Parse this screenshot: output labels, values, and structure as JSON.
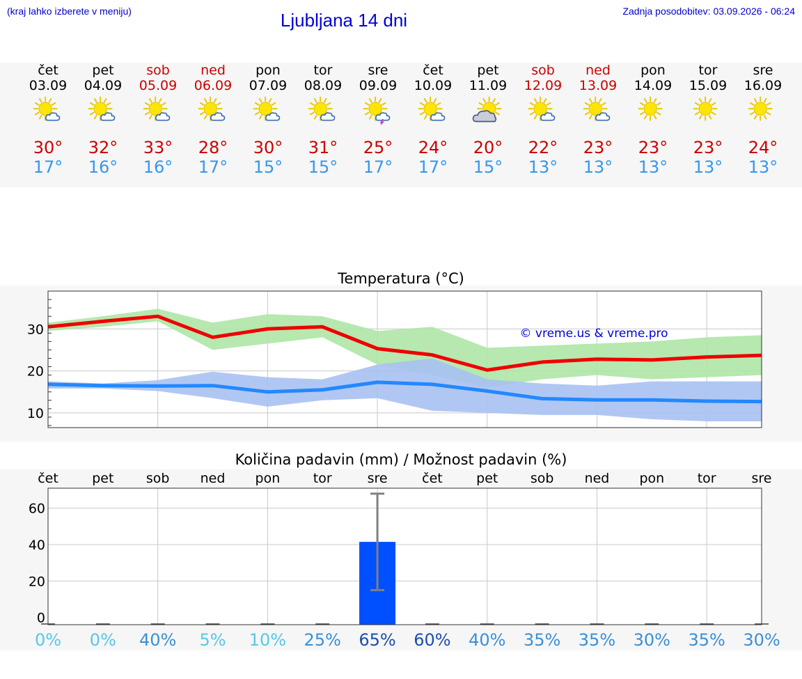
{
  "header": {
    "hint": "(kraj lahko izberete v meniju)",
    "title": "Ljubljana 14 dni",
    "updated": "Zadnja posodobitev: 03.09.2026 - 06:24"
  },
  "days": [
    {
      "name": "čet",
      "date": "03.09",
      "weekend": false,
      "icon": "sun-cloud-icon",
      "max": "30°",
      "min": "17°"
    },
    {
      "name": "pet",
      "date": "04.09",
      "weekend": false,
      "icon": "sun-cloud-icon",
      "max": "32°",
      "min": "16°"
    },
    {
      "name": "sob",
      "date": "05.09",
      "weekend": true,
      "icon": "sun-cloud-icon",
      "max": "33°",
      "min": "16°"
    },
    {
      "name": "ned",
      "date": "06.09",
      "weekend": true,
      "icon": "sun-cloud-icon",
      "max": "28°",
      "min": "17°"
    },
    {
      "name": "pon",
      "date": "07.09",
      "weekend": false,
      "icon": "sun-cloud-icon",
      "max": "30°",
      "min": "15°"
    },
    {
      "name": "tor",
      "date": "08.09",
      "weekend": false,
      "icon": "sun-cloud-icon",
      "max": "31°",
      "min": "15°"
    },
    {
      "name": "sre",
      "date": "09.09",
      "weekend": false,
      "icon": "sun-cloud-thunder-icon",
      "max": "25°",
      "min": "17°"
    },
    {
      "name": "čet",
      "date": "10.09",
      "weekend": false,
      "icon": "sun-cloud-icon",
      "max": "24°",
      "min": "17°"
    },
    {
      "name": "pet",
      "date": "11.09",
      "weekend": false,
      "icon": "cloud-sun-icon",
      "max": "20°",
      "min": "15°"
    },
    {
      "name": "sob",
      "date": "12.09",
      "weekend": true,
      "icon": "sun-cloud-icon",
      "max": "22°",
      "min": "13°"
    },
    {
      "name": "ned",
      "date": "13.09",
      "weekend": true,
      "icon": "sun-cloud-icon",
      "max": "23°",
      "min": "13°"
    },
    {
      "name": "pon",
      "date": "14.09",
      "weekend": false,
      "icon": "sun-icon",
      "max": "23°",
      "min": "13°"
    },
    {
      "name": "tor",
      "date": "15.09",
      "weekend": false,
      "icon": "sun-icon",
      "max": "23°",
      "min": "13°"
    },
    {
      "name": "sre",
      "date": "16.09",
      "weekend": false,
      "icon": "sun-icon",
      "max": "24°",
      "min": "13°"
    }
  ],
  "colors": {
    "max": "#ee0000",
    "min": "#2288ff",
    "max_band": "#aee6a6",
    "min_band": "#a9c1f2",
    "bar": "#0050ff",
    "weekend": "#cc0000"
  },
  "chart_data": [
    {
      "type": "line",
      "title": "Temperatura (°C)",
      "watermark": "© vreme.us & vreme.pro",
      "x": [
        "03.09",
        "04.09",
        "05.09",
        "06.09",
        "07.09",
        "08.09",
        "09.09",
        "10.09",
        "11.09",
        "12.09",
        "13.09",
        "14.09",
        "15.09",
        "16.09"
      ],
      "yticks": [
        10,
        20,
        30
      ],
      "ylim": [
        6.5,
        39
      ],
      "grid": true,
      "series": [
        {
          "values": [
            30.5,
            31.8,
            33.0,
            28.0,
            30.0,
            30.5,
            25.3,
            23.8,
            20.2,
            22.1,
            22.8,
            22.6,
            23.3,
            23.7
          ]
        },
        {
          "values": [
            16.8,
            16.5,
            16.4,
            16.5,
            15.0,
            15.5,
            17.3,
            16.8,
            15.2,
            13.4,
            13.1,
            13.1,
            12.8,
            12.7
          ]
        }
      ],
      "bands": [
        {
          "upper": [
            31.5,
            33.0,
            34.8,
            31.5,
            33.5,
            33.0,
            29.5,
            30.5,
            25.5,
            26.0,
            26.5,
            27.0,
            28.0,
            28.5
          ],
          "lower": [
            29.5,
            30.5,
            31.8,
            25.0,
            26.5,
            28.0,
            21.5,
            19.0,
            16.0,
            18.0,
            19.0,
            18.0,
            18.5,
            19.0
          ]
        },
        {
          "upper": [
            17.5,
            17.0,
            17.8,
            19.8,
            18.5,
            18.0,
            21.5,
            23.0,
            18.0,
            17.0,
            16.5,
            17.5,
            17.5,
            17.5
          ],
          "lower": [
            15.8,
            15.8,
            15.2,
            13.5,
            11.5,
            13.0,
            13.5,
            10.5,
            10.0,
            9.5,
            9.5,
            8.5,
            8.0,
            8.0
          ]
        }
      ]
    },
    {
      "type": "bar",
      "title": "Količina padavin (mm) / Možnost padavin (%)",
      "categories": [
        "čet",
        "pet",
        "sob",
        "ned",
        "pon",
        "tor",
        "sre",
        "čet",
        "pet",
        "sob",
        "ned",
        "pon",
        "tor",
        "sre"
      ],
      "yticks": [
        0,
        20,
        40,
        60
      ],
      "ylim": [
        -4,
        71
      ],
      "values": [
        0,
        0,
        0,
        0,
        0,
        0,
        41.5,
        0,
        0,
        0,
        0,
        0,
        0,
        0
      ],
      "error_bars": [
        {
          "index": 6,
          "low": 15,
          "high": 68
        }
      ],
      "probability": [
        "0%",
        "0%",
        "40%",
        "5%",
        "10%",
        "25%",
        "65%",
        "60%",
        "40%",
        "35%",
        "35%",
        "30%",
        "35%",
        "30%"
      ],
      "probability_values": [
        0,
        0,
        40,
        5,
        10,
        25,
        65,
        60,
        40,
        35,
        35,
        30,
        35,
        30
      ]
    }
  ]
}
